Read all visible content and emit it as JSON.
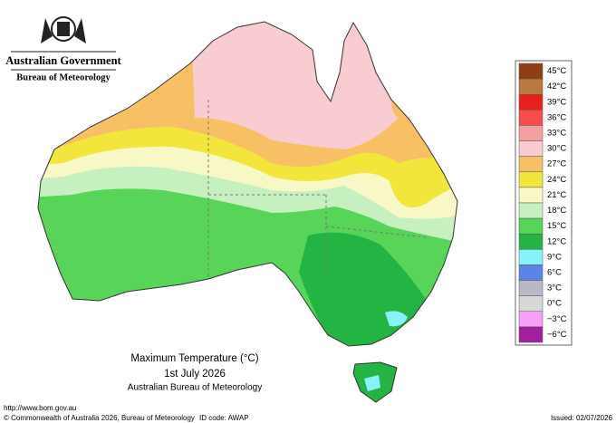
{
  "header": {
    "government": "Australian Government",
    "agency": "Bureau of Meteorology"
  },
  "map": {
    "title": "Maximum Temperature (°C)",
    "date": "1st July 2026",
    "source": "Australian Bureau of Meteorology"
  },
  "legend": [
    {
      "label": "45°C",
      "color": "#8e3f16"
    },
    {
      "label": "42°C",
      "color": "#b87a3e"
    },
    {
      "label": "39°C",
      "color": "#e8201c"
    },
    {
      "label": "36°C",
      "color": "#f64c4c"
    },
    {
      "label": "33°C",
      "color": "#f5a0a0"
    },
    {
      "label": "30°C",
      "color": "#f9ccd2"
    },
    {
      "label": "27°C",
      "color": "#f8c064"
    },
    {
      "label": "24°C",
      "color": "#f2e63c"
    },
    {
      "label": "21°C",
      "color": "#f8f8c6"
    },
    {
      "label": "18°C",
      "color": "#c6f0c0"
    },
    {
      "label": "15°C",
      "color": "#58d458"
    },
    {
      "label": "12°C",
      "color": "#24b444"
    },
    {
      "label": "9°C",
      "color": "#88f2f8"
    },
    {
      "label": "6°C",
      "color": "#5c84e8"
    },
    {
      "label": "3°C",
      "color": "#b8b8c8"
    },
    {
      "label": "0°C",
      "color": "#d8d8d8"
    },
    {
      "label": "−3°C",
      "color": "#f8a0f8"
    },
    {
      "label": "−6°C",
      "color": "#a020a0"
    }
  ],
  "footer": {
    "url": "http://www.bom.gov.au",
    "copyright": "© Commonwealth of Australia 2026, Bureau of Meteorology",
    "id_code": "ID code: AWAP",
    "issued": "Issued: 02/07/2026"
  }
}
